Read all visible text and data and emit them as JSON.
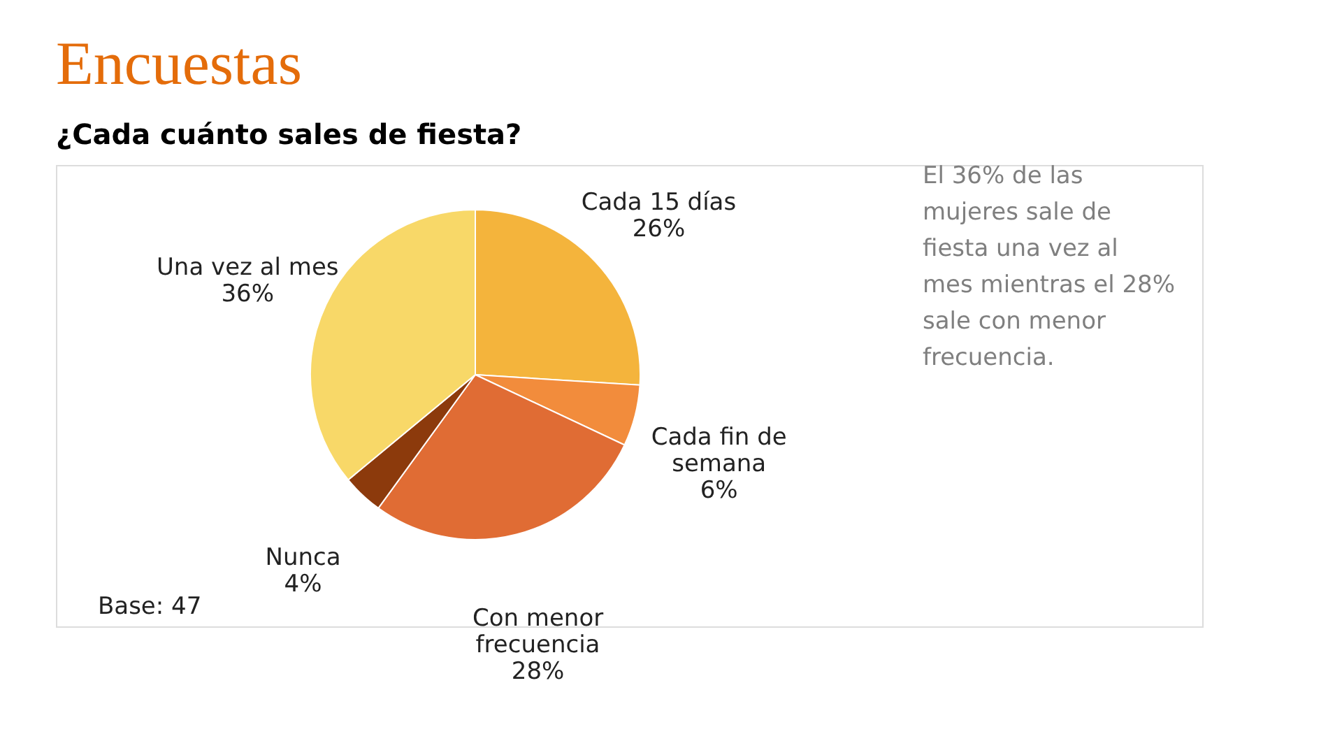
{
  "chart_data": {
    "type": "pie",
    "title": "Encuestas",
    "subtitle": "¿Cada cuánto sales de fiesta?",
    "categories": [
      "Cada 15 días",
      "Cada fin de semana",
      "Con menor frecuencia",
      "Nunca",
      "Una vez al mes"
    ],
    "values": [
      26,
      6,
      28,
      4,
      36
    ],
    "value_labels": [
      "26%",
      "6%",
      "28%",
      "4%",
      "36%"
    ],
    "colors": [
      "#f4b43c",
      "#f28c3c",
      "#e06c34",
      "#8c3a0c",
      "#f8d868"
    ],
    "legend": false,
    "annotations": [
      "El 36% de las mujeres sale de fiesta una vez al mes mientras el 28% sale con menor frecuencia.",
      "Base: 47"
    ]
  }
}
